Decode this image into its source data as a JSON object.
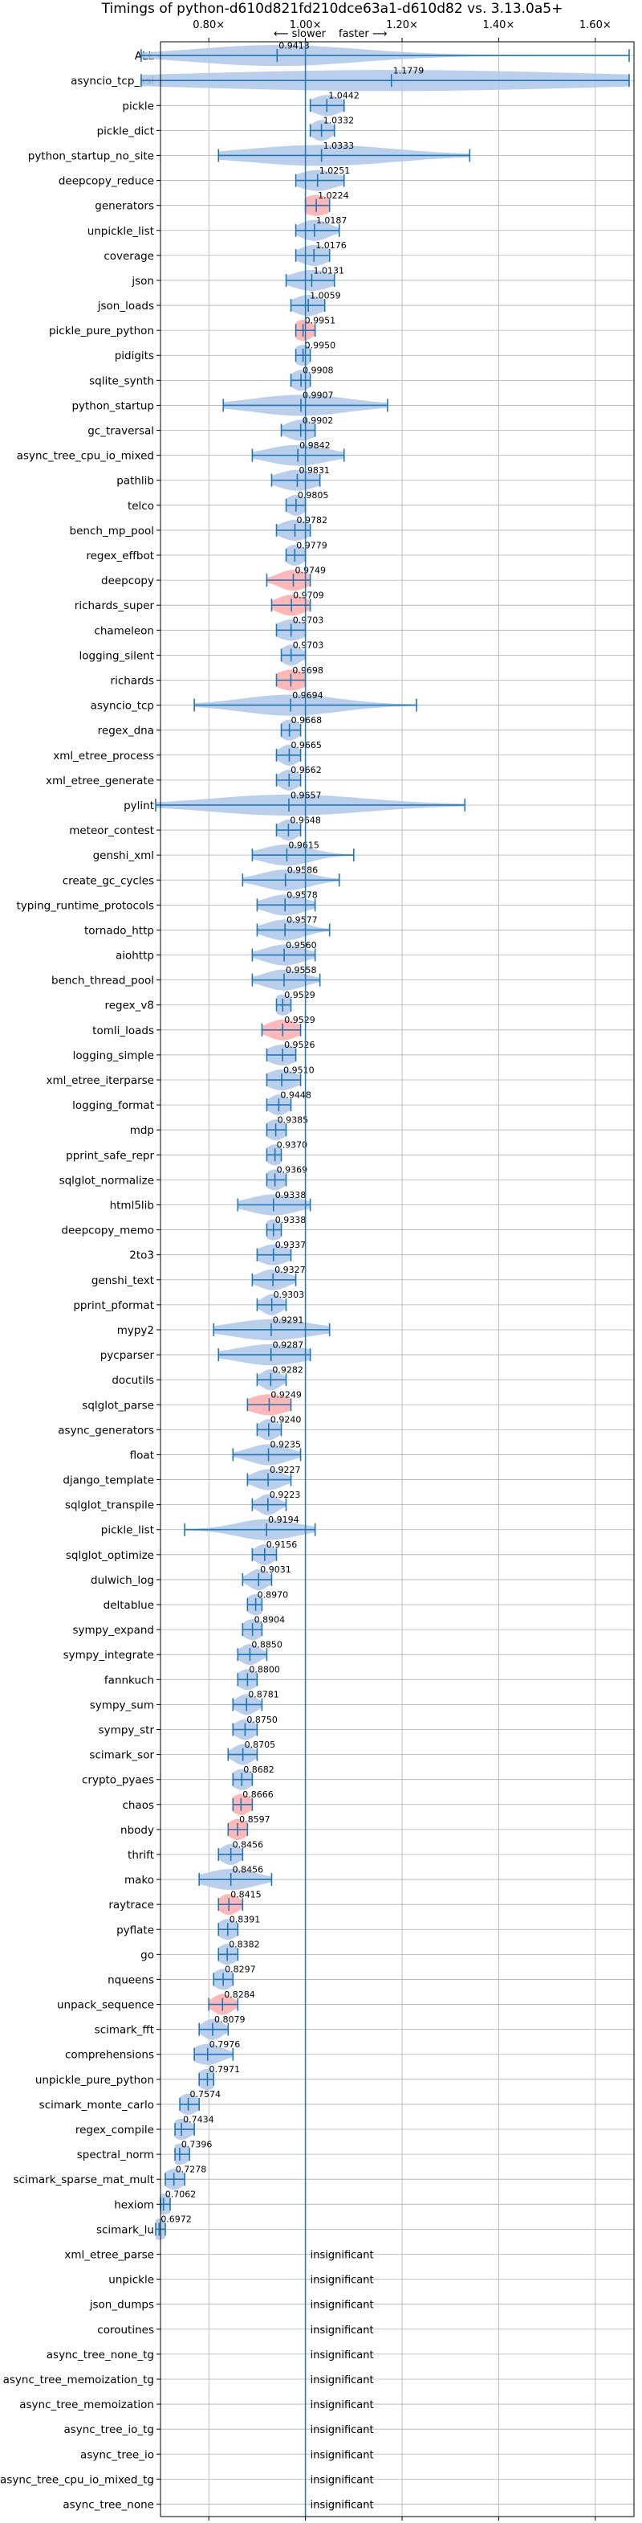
{
  "chart_data": {
    "type": "violin",
    "title": "Timings of python-d610d821fd210dce63a1-d610d82 vs. 3.13.0a5+",
    "direction_slower": "⟵ slower",
    "direction_faster": "faster ⟶",
    "xlim": [
      0.7,
      1.68
    ],
    "xticks": [
      "0.80×",
      "1.00×",
      "1.20×",
      "1.40×",
      "1.60×"
    ],
    "xtick_values": [
      0.8,
      1.0,
      1.2,
      1.4,
      1.6
    ],
    "reference_line": 1.0,
    "grid": true,
    "colors": {
      "violin": "#aec7e8",
      "highlight": "#ffaaaa",
      "line": "#1f77b4"
    },
    "benchmarks": [
      {
        "name": "ALL",
        "value": 0.9413,
        "label": "0.9413",
        "lo": 0.66,
        "hi": 1.67,
        "spread": 0.1,
        "highlight": false
      },
      {
        "name": "asyncio_tcp_ssl",
        "value": 1.1779,
        "label": "1.1779",
        "lo": 0.66,
        "hi": 1.67,
        "spread": 0.45,
        "highlight": false
      },
      {
        "name": "pickle",
        "value": 1.0442,
        "label": "1.0442",
        "lo": 1.01,
        "hi": 1.08,
        "spread": 0.03,
        "highlight": false
      },
      {
        "name": "pickle_dict",
        "value": 1.0332,
        "label": "1.0332",
        "lo": 1.01,
        "hi": 1.06,
        "spread": 0.02,
        "highlight": false
      },
      {
        "name": "python_startup_no_site",
        "value": 1.0333,
        "label": "1.0333",
        "lo": 0.82,
        "hi": 1.34,
        "spread": 0.15,
        "highlight": false
      },
      {
        "name": "deepcopy_reduce",
        "value": 1.0251,
        "label": "1.0251",
        "lo": 0.98,
        "hi": 1.08,
        "spread": 0.04,
        "highlight": false
      },
      {
        "name": "generators",
        "value": 1.0224,
        "label": "1.0224",
        "lo": 1.0,
        "hi": 1.05,
        "spread": 0.03,
        "highlight": true
      },
      {
        "name": "unpickle_list",
        "value": 1.0187,
        "label": "1.0187",
        "lo": 0.98,
        "hi": 1.07,
        "spread": 0.03,
        "highlight": false
      },
      {
        "name": "coverage",
        "value": 1.0176,
        "label": "1.0176",
        "lo": 0.98,
        "hi": 1.05,
        "spread": 0.03,
        "highlight": false
      },
      {
        "name": "json",
        "value": 1.0131,
        "label": "1.0131",
        "lo": 0.96,
        "hi": 1.06,
        "spread": 0.04,
        "highlight": false
      },
      {
        "name": "json_loads",
        "value": 1.0059,
        "label": "1.0059",
        "lo": 0.97,
        "hi": 1.04,
        "spread": 0.03,
        "highlight": false
      },
      {
        "name": "pickle_pure_python",
        "value": 0.9951,
        "label": "0.9951",
        "lo": 0.98,
        "hi": 1.02,
        "spread": 0.02,
        "highlight": true
      },
      {
        "name": "pidigits",
        "value": 0.995,
        "label": "0.9950",
        "lo": 0.98,
        "hi": 1.01,
        "spread": 0.02,
        "highlight": false
      },
      {
        "name": "sqlite_synth",
        "value": 0.9908,
        "label": "0.9908",
        "lo": 0.97,
        "hi": 1.01,
        "spread": 0.02,
        "highlight": false
      },
      {
        "name": "python_startup",
        "value": 0.9907,
        "label": "0.9907",
        "lo": 0.83,
        "hi": 1.17,
        "spread": 0.1,
        "highlight": false
      },
      {
        "name": "gc_traversal",
        "value": 0.9902,
        "label": "0.9902",
        "lo": 0.95,
        "hi": 1.02,
        "spread": 0.03,
        "highlight": false
      },
      {
        "name": "async_tree_cpu_io_mixed",
        "value": 0.9842,
        "label": "0.9842",
        "lo": 0.89,
        "hi": 1.08,
        "spread": 0.06,
        "highlight": false
      },
      {
        "name": "pathlib",
        "value": 0.9831,
        "label": "0.9831",
        "lo": 0.93,
        "hi": 1.03,
        "spread": 0.04,
        "highlight": false
      },
      {
        "name": "telco",
        "value": 0.9805,
        "label": "0.9805",
        "lo": 0.96,
        "hi": 1.0,
        "spread": 0.02,
        "highlight": false
      },
      {
        "name": "bench_mp_pool",
        "value": 0.9782,
        "label": "0.9782",
        "lo": 0.94,
        "hi": 1.01,
        "spread": 0.03,
        "highlight": false
      },
      {
        "name": "regex_effbot",
        "value": 0.9779,
        "label": "0.9779",
        "lo": 0.96,
        "hi": 1.0,
        "spread": 0.02,
        "highlight": false
      },
      {
        "name": "deepcopy",
        "value": 0.9749,
        "label": "0.9749",
        "lo": 0.92,
        "hi": 1.01,
        "spread": 0.03,
        "highlight": true
      },
      {
        "name": "richards_super",
        "value": 0.9709,
        "label": "0.9709",
        "lo": 0.93,
        "hi": 1.01,
        "spread": 0.03,
        "highlight": true
      },
      {
        "name": "chameleon",
        "value": 0.9703,
        "label": "0.9703",
        "lo": 0.94,
        "hi": 1.0,
        "spread": 0.03,
        "highlight": false
      },
      {
        "name": "logging_silent",
        "value": 0.9703,
        "label": "0.9703",
        "lo": 0.95,
        "hi": 1.0,
        "spread": 0.02,
        "highlight": false
      },
      {
        "name": "richards",
        "value": 0.9698,
        "label": "0.9698",
        "lo": 0.94,
        "hi": 1.0,
        "spread": 0.03,
        "highlight": true
      },
      {
        "name": "asyncio_tcp",
        "value": 0.9694,
        "label": "0.9694",
        "lo": 0.77,
        "hi": 1.23,
        "spread": 0.1,
        "highlight": false
      },
      {
        "name": "regex_dna",
        "value": 0.9668,
        "label": "0.9668",
        "lo": 0.95,
        "hi": 0.99,
        "spread": 0.02,
        "highlight": false
      },
      {
        "name": "xml_etree_process",
        "value": 0.9665,
        "label": "0.9665",
        "lo": 0.94,
        "hi": 0.99,
        "spread": 0.02,
        "highlight": false
      },
      {
        "name": "xml_etree_generate",
        "value": 0.9662,
        "label": "0.9662",
        "lo": 0.94,
        "hi": 0.99,
        "spread": 0.02,
        "highlight": false
      },
      {
        "name": "pylint",
        "value": 0.9657,
        "label": "0.9657",
        "lo": 0.69,
        "hi": 1.33,
        "spread": 0.16,
        "highlight": false
      },
      {
        "name": "meteor_contest",
        "value": 0.9648,
        "label": "0.9648",
        "lo": 0.94,
        "hi": 0.99,
        "spread": 0.02,
        "highlight": false
      },
      {
        "name": "genshi_xml",
        "value": 0.9615,
        "label": "0.9615",
        "lo": 0.89,
        "hi": 1.1,
        "spread": 0.05,
        "highlight": false
      },
      {
        "name": "create_gc_cycles",
        "value": 0.9586,
        "label": "0.9586",
        "lo": 0.87,
        "hi": 1.07,
        "spread": 0.05,
        "highlight": false
      },
      {
        "name": "typing_runtime_protocols",
        "value": 0.9578,
        "label": "0.9578",
        "lo": 0.9,
        "hi": 1.02,
        "spread": 0.04,
        "highlight": false
      },
      {
        "name": "tornado_http",
        "value": 0.9577,
        "label": "0.9577",
        "lo": 0.9,
        "hi": 1.05,
        "spread": 0.04,
        "highlight": false
      },
      {
        "name": "aiohttp",
        "value": 0.956,
        "label": "0.9560",
        "lo": 0.89,
        "hi": 1.02,
        "spread": 0.04,
        "highlight": false
      },
      {
        "name": "bench_thread_pool",
        "value": 0.9558,
        "label": "0.9558",
        "lo": 0.89,
        "hi": 1.03,
        "spread": 0.04,
        "highlight": false
      },
      {
        "name": "regex_v8",
        "value": 0.9529,
        "label": "0.9529",
        "lo": 0.94,
        "hi": 0.97,
        "spread": 0.02,
        "highlight": false
      },
      {
        "name": "tomli_loads",
        "value": 0.9529,
        "label": "0.9529",
        "lo": 0.91,
        "hi": 0.99,
        "spread": 0.03,
        "highlight": true
      },
      {
        "name": "logging_simple",
        "value": 0.9526,
        "label": "0.9526",
        "lo": 0.92,
        "hi": 0.98,
        "spread": 0.03,
        "highlight": false
      },
      {
        "name": "xml_etree_iterparse",
        "value": 0.951,
        "label": "0.9510",
        "lo": 0.92,
        "hi": 0.99,
        "spread": 0.03,
        "highlight": false
      },
      {
        "name": "logging_format",
        "value": 0.9448,
        "label": "0.9448",
        "lo": 0.92,
        "hi": 0.97,
        "spread": 0.02,
        "highlight": false
      },
      {
        "name": "mdp",
        "value": 0.9385,
        "label": "0.9385",
        "lo": 0.92,
        "hi": 0.96,
        "spread": 0.02,
        "highlight": false
      },
      {
        "name": "pprint_safe_repr",
        "value": 0.937,
        "label": "0.9370",
        "lo": 0.92,
        "hi": 0.95,
        "spread": 0.02,
        "highlight": false
      },
      {
        "name": "sqlglot_normalize",
        "value": 0.9369,
        "label": "0.9369",
        "lo": 0.92,
        "hi": 0.96,
        "spread": 0.02,
        "highlight": false
      },
      {
        "name": "html5lib",
        "value": 0.9338,
        "label": "0.9338",
        "lo": 0.86,
        "hi": 1.01,
        "spread": 0.05,
        "highlight": false
      },
      {
        "name": "deepcopy_memo",
        "value": 0.9338,
        "label": "0.9338",
        "lo": 0.92,
        "hi": 0.95,
        "spread": 0.02,
        "highlight": false
      },
      {
        "name": "2to3",
        "value": 0.9337,
        "label": "0.9337",
        "lo": 0.9,
        "hi": 0.97,
        "spread": 0.03,
        "highlight": false
      },
      {
        "name": "genshi_text",
        "value": 0.9327,
        "label": "0.9327",
        "lo": 0.89,
        "hi": 0.98,
        "spread": 0.03,
        "highlight": false
      },
      {
        "name": "pprint_pformat",
        "value": 0.9303,
        "label": "0.9303",
        "lo": 0.9,
        "hi": 0.96,
        "spread": 0.02,
        "highlight": false
      },
      {
        "name": "mypy2",
        "value": 0.9291,
        "label": "0.9291",
        "lo": 0.81,
        "hi": 1.05,
        "spread": 0.08,
        "highlight": false
      },
      {
        "name": "pycparser",
        "value": 0.9287,
        "label": "0.9287",
        "lo": 0.82,
        "hi": 1.01,
        "spread": 0.07,
        "highlight": false
      },
      {
        "name": "docutils",
        "value": 0.9282,
        "label": "0.9282",
        "lo": 0.9,
        "hi": 0.96,
        "spread": 0.02,
        "highlight": false
      },
      {
        "name": "sqlglot_parse",
        "value": 0.9249,
        "label": "0.9249",
        "lo": 0.88,
        "hi": 0.97,
        "spread": 0.04,
        "highlight": true
      },
      {
        "name": "async_generators",
        "value": 0.924,
        "label": "0.9240",
        "lo": 0.9,
        "hi": 0.95,
        "spread": 0.02,
        "highlight": false
      },
      {
        "name": "float",
        "value": 0.9235,
        "label": "0.9235",
        "lo": 0.85,
        "hi": 0.99,
        "spread": 0.04,
        "highlight": false
      },
      {
        "name": "django_template",
        "value": 0.9227,
        "label": "0.9227",
        "lo": 0.88,
        "hi": 0.97,
        "spread": 0.03,
        "highlight": false
      },
      {
        "name": "sqlglot_transpile",
        "value": 0.9223,
        "label": "0.9223",
        "lo": 0.89,
        "hi": 0.96,
        "spread": 0.02,
        "highlight": false
      },
      {
        "name": "pickle_list",
        "value": 0.9194,
        "label": "0.9194",
        "lo": 0.75,
        "hi": 1.02,
        "spread": 0.06,
        "highlight": false
      },
      {
        "name": "sqlglot_optimize",
        "value": 0.9156,
        "label": "0.9156",
        "lo": 0.89,
        "hi": 0.94,
        "spread": 0.02,
        "highlight": false
      },
      {
        "name": "dulwich_log",
        "value": 0.9031,
        "label": "0.9031",
        "lo": 0.87,
        "hi": 0.93,
        "spread": 0.02,
        "highlight": false
      },
      {
        "name": "deltablue",
        "value": 0.897,
        "label": "0.8970",
        "lo": 0.88,
        "hi": 0.91,
        "spread": 0.02,
        "highlight": false
      },
      {
        "name": "sympy_expand",
        "value": 0.8904,
        "label": "0.8904",
        "lo": 0.87,
        "hi": 0.91,
        "spread": 0.02,
        "highlight": false
      },
      {
        "name": "sympy_integrate",
        "value": 0.885,
        "label": "0.8850",
        "lo": 0.86,
        "hi": 0.92,
        "spread": 0.02,
        "highlight": false
      },
      {
        "name": "fannkuch",
        "value": 0.88,
        "label": "0.8800",
        "lo": 0.86,
        "hi": 0.9,
        "spread": 0.02,
        "highlight": false
      },
      {
        "name": "sympy_sum",
        "value": 0.8781,
        "label": "0.8781",
        "lo": 0.85,
        "hi": 0.91,
        "spread": 0.02,
        "highlight": false
      },
      {
        "name": "sympy_str",
        "value": 0.875,
        "label": "0.8750",
        "lo": 0.85,
        "hi": 0.9,
        "spread": 0.02,
        "highlight": false
      },
      {
        "name": "scimark_sor",
        "value": 0.8705,
        "label": "0.8705",
        "lo": 0.84,
        "hi": 0.9,
        "spread": 0.02,
        "highlight": false
      },
      {
        "name": "crypto_pyaes",
        "value": 0.8682,
        "label": "0.8682",
        "lo": 0.85,
        "hi": 0.89,
        "spread": 0.02,
        "highlight": false
      },
      {
        "name": "chaos",
        "value": 0.8666,
        "label": "0.8666",
        "lo": 0.85,
        "hi": 0.89,
        "spread": 0.02,
        "highlight": true
      },
      {
        "name": "nbody",
        "value": 0.8597,
        "label": "0.8597",
        "lo": 0.84,
        "hi": 0.88,
        "spread": 0.02,
        "highlight": true
      },
      {
        "name": "thrift",
        "value": 0.8456,
        "label": "0.8456",
        "lo": 0.82,
        "hi": 0.87,
        "spread": 0.02,
        "highlight": false
      },
      {
        "name": "mako",
        "value": 0.8456,
        "label": "0.8456",
        "lo": 0.78,
        "hi": 0.93,
        "spread": 0.05,
        "highlight": false
      },
      {
        "name": "raytrace",
        "value": 0.8415,
        "label": "0.8415",
        "lo": 0.82,
        "hi": 0.87,
        "spread": 0.02,
        "highlight": true
      },
      {
        "name": "pyflate",
        "value": 0.8391,
        "label": "0.8391",
        "lo": 0.82,
        "hi": 0.86,
        "spread": 0.02,
        "highlight": false
      },
      {
        "name": "go",
        "value": 0.8382,
        "label": "0.8382",
        "lo": 0.82,
        "hi": 0.86,
        "spread": 0.02,
        "highlight": false
      },
      {
        "name": "nqueens",
        "value": 0.8297,
        "label": "0.8297",
        "lo": 0.81,
        "hi": 0.85,
        "spread": 0.02,
        "highlight": false
      },
      {
        "name": "unpack_sequence",
        "value": 0.8284,
        "label": "0.8284",
        "lo": 0.8,
        "hi": 0.86,
        "spread": 0.02,
        "highlight": true
      },
      {
        "name": "scimark_fft",
        "value": 0.8079,
        "label": "0.8079",
        "lo": 0.78,
        "hi": 0.84,
        "spread": 0.02,
        "highlight": false
      },
      {
        "name": "comprehensions",
        "value": 0.7976,
        "label": "0.7976",
        "lo": 0.77,
        "hi": 0.85,
        "spread": 0.03,
        "highlight": false
      },
      {
        "name": "unpickle_pure_python",
        "value": 0.7971,
        "label": "0.7971",
        "lo": 0.78,
        "hi": 0.81,
        "spread": 0.02,
        "highlight": false
      },
      {
        "name": "scimark_monte_carlo",
        "value": 0.7574,
        "label": "0.7574",
        "lo": 0.74,
        "hi": 0.78,
        "spread": 0.02,
        "highlight": false
      },
      {
        "name": "regex_compile",
        "value": 0.7434,
        "label": "0.7434",
        "lo": 0.73,
        "hi": 0.77,
        "spread": 0.02,
        "highlight": false
      },
      {
        "name": "spectral_norm",
        "value": 0.7396,
        "label": "0.7396",
        "lo": 0.73,
        "hi": 0.76,
        "spread": 0.02,
        "highlight": false
      },
      {
        "name": "scimark_sparse_mat_mult",
        "value": 0.7278,
        "label": "0.7278",
        "lo": 0.71,
        "hi": 0.75,
        "spread": 0.02,
        "highlight": false
      },
      {
        "name": "hexiom",
        "value": 0.7062,
        "label": "0.7062",
        "lo": 0.7,
        "hi": 0.72,
        "spread": 0.02,
        "highlight": false
      },
      {
        "name": "scimark_lu",
        "value": 0.6972,
        "label": "0.6972",
        "lo": 0.69,
        "hi": 0.71,
        "spread": 0.02,
        "highlight": false
      },
      {
        "name": "xml_etree_parse",
        "value": null,
        "label": "insignificant"
      },
      {
        "name": "unpickle",
        "value": null,
        "label": "insignificant"
      },
      {
        "name": "json_dumps",
        "value": null,
        "label": "insignificant"
      },
      {
        "name": "coroutines",
        "value": null,
        "label": "insignificant"
      },
      {
        "name": "async_tree_none_tg",
        "value": null,
        "label": "insignificant"
      },
      {
        "name": "async_tree_memoization_tg",
        "value": null,
        "label": "insignificant"
      },
      {
        "name": "async_tree_memoization",
        "value": null,
        "label": "insignificant"
      },
      {
        "name": "async_tree_io_tg",
        "value": null,
        "label": "insignificant"
      },
      {
        "name": "async_tree_io",
        "value": null,
        "label": "insignificant"
      },
      {
        "name": "async_tree_cpu_io_mixed_tg",
        "value": null,
        "label": "insignificant"
      },
      {
        "name": "async_tree_none",
        "value": null,
        "label": "insignificant"
      }
    ]
  }
}
